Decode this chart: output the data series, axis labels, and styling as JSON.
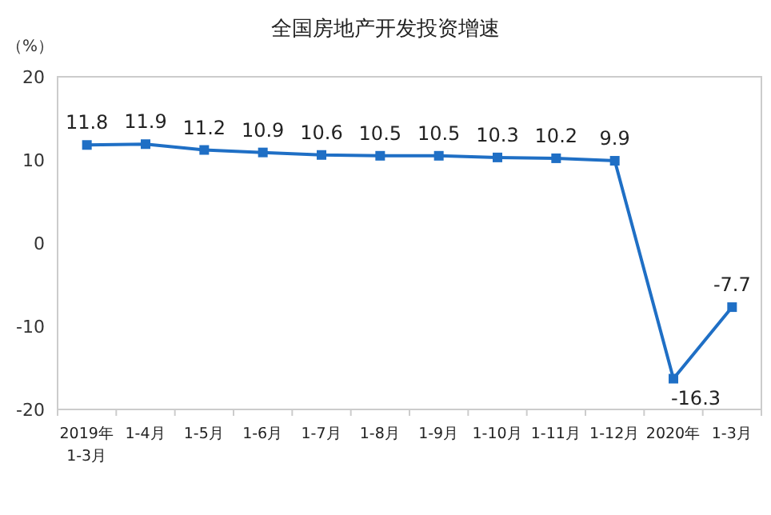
{
  "chart_data": {
    "type": "line",
    "title": "全国房地产开发投资增速",
    "ylabel": "（%）",
    "categories": [
      "2019年\n1-3月",
      "1-4月",
      "1-5月",
      "1-6月",
      "1-7月",
      "1-8月",
      "1-9月",
      "1-10月",
      "1-11月",
      "1-12月",
      "2020年",
      "1-3月"
    ],
    "series": [
      {
        "color": "#1f6fc5",
        "values": [
          11.8,
          11.9,
          11.2,
          10.9,
          10.6,
          10.5,
          10.5,
          10.3,
          10.2,
          9.9,
          -16.3,
          -7.7
        ]
      }
    ],
    "ylim": [
      -20,
      20
    ],
    "yticks": [
      -20,
      -10,
      0,
      10,
      20
    ],
    "grid": false,
    "marker": "square",
    "data_labels": true
  }
}
